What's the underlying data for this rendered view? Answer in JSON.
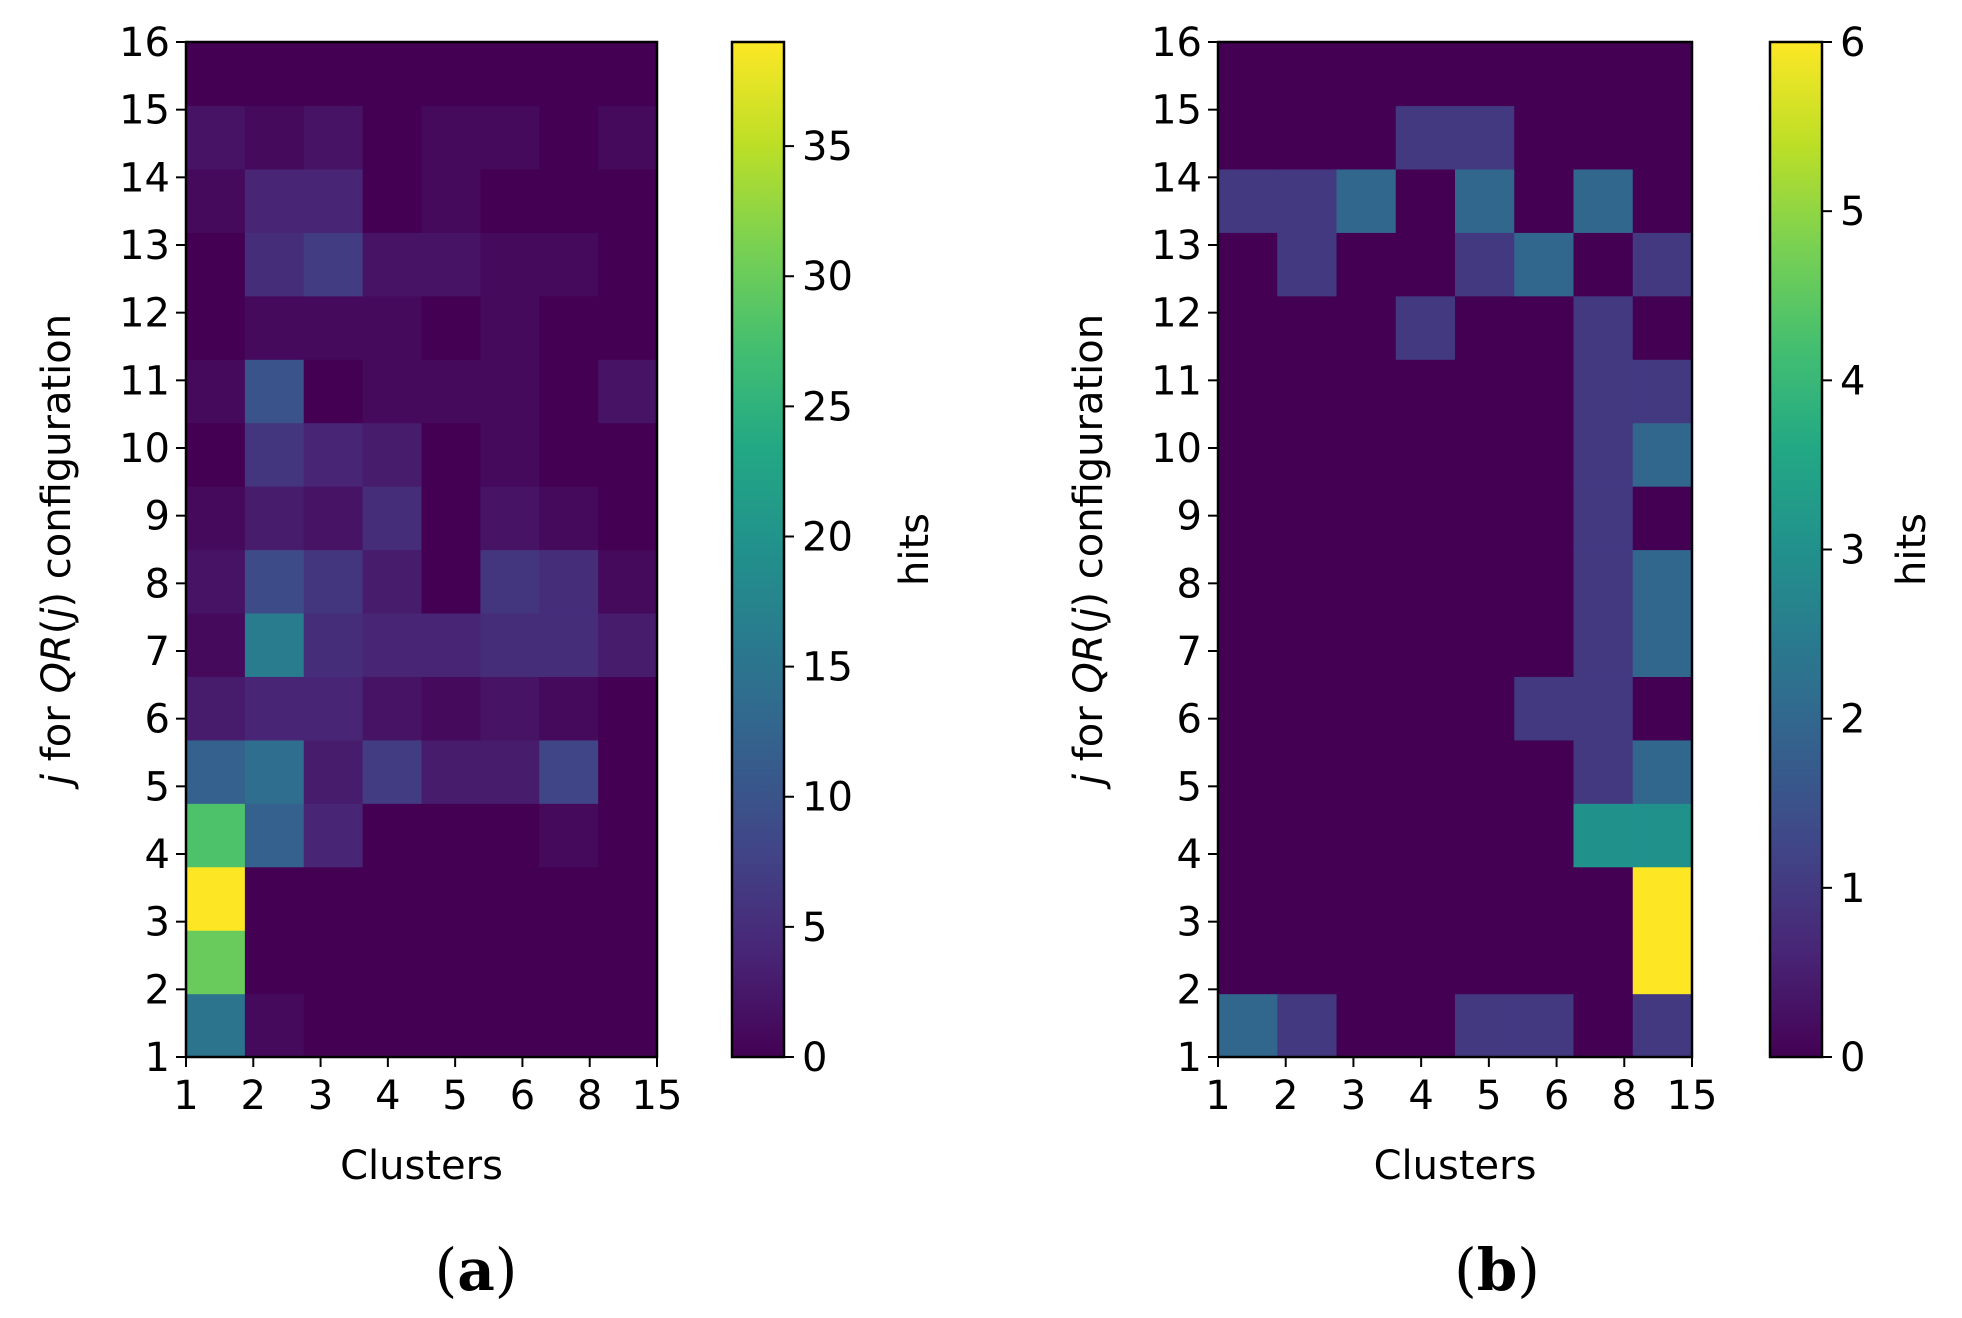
{
  "chart_data": [
    {
      "type": "heatmap",
      "panel_label": "(a)",
      "xlabel": "Clusters",
      "ylabel_parts": [
        "j",
        " for ",
        "QR",
        "(",
        "j",
        ") configuration"
      ],
      "x_categories": [
        "1",
        "2",
        "3",
        "4",
        "5",
        "6",
        "8",
        "15"
      ],
      "y_ticks": [
        "1",
        "2",
        "3",
        "4",
        "5",
        "6",
        "7",
        "8",
        "9",
        "10",
        "11",
        "12",
        "13",
        "14",
        "15",
        "16"
      ],
      "colorbar": {
        "label": "hits",
        "min": 0,
        "max": 39,
        "ticks": [
          "0",
          "5",
          "10",
          "15",
          "20",
          "25",
          "30",
          "35"
        ],
        "tick_values": [
          0,
          5,
          10,
          15,
          20,
          25,
          30,
          35
        ]
      },
      "rows_bottom_to_top": [
        [
          15,
          1,
          0,
          0,
          0,
          0,
          0,
          0
        ],
        [
          30,
          0,
          0,
          0,
          0,
          0,
          0,
          0
        ],
        [
          39,
          0,
          0,
          0,
          0,
          0,
          0,
          0
        ],
        [
          28,
          12,
          4,
          0,
          0,
          0,
          1,
          0
        ],
        [
          12,
          14,
          3,
          7,
          3,
          3,
          8,
          0
        ],
        [
          3,
          4,
          4,
          2,
          1,
          2,
          1,
          0
        ],
        [
          1,
          16,
          5,
          4,
          4,
          5,
          5,
          3
        ],
        [
          2,
          9,
          6,
          3,
          0,
          6,
          5,
          1
        ],
        [
          1,
          3,
          2,
          5,
          0,
          2,
          1,
          0
        ],
        [
          0,
          6,
          4,
          3,
          0,
          1,
          0,
          0
        ],
        [
          1,
          10,
          0,
          1,
          1,
          1,
          0,
          2
        ],
        [
          0,
          1,
          1,
          1,
          0,
          1,
          0,
          0
        ],
        [
          0,
          5,
          7,
          2,
          2,
          1,
          1,
          0
        ],
        [
          1,
          4,
          4,
          0,
          1,
          0,
          0,
          0
        ],
        [
          2,
          1,
          2,
          0,
          1,
          1,
          0,
          1
        ],
        [
          0,
          0,
          0,
          0,
          0,
          0,
          0,
          0
        ]
      ]
    },
    {
      "type": "heatmap",
      "panel_label": "(b)",
      "xlabel": "Clusters",
      "ylabel_parts": [
        "j",
        " for ",
        "QR",
        "(",
        "j",
        ") configuration"
      ],
      "x_categories": [
        "1",
        "2",
        "3",
        "4",
        "5",
        "6",
        "8",
        "15"
      ],
      "y_ticks": [
        "1",
        "2",
        "3",
        "4",
        "5",
        "6",
        "7",
        "8",
        "9",
        "10",
        "11",
        "12",
        "13",
        "14",
        "15",
        "16"
      ],
      "colorbar": {
        "label": "hits",
        "min": 0,
        "max": 6,
        "ticks": [
          "0",
          "1",
          "2",
          "3",
          "4",
          "5",
          "6"
        ],
        "tick_values": [
          0,
          1,
          2,
          3,
          4,
          5,
          6
        ]
      },
      "rows_bottom_to_top": [
        [
          2,
          1,
          0,
          0,
          1,
          1,
          0,
          1
        ],
        [
          0,
          0,
          0,
          0,
          0,
          0,
          0,
          6
        ],
        [
          0,
          0,
          0,
          0,
          0,
          0,
          0,
          6
        ],
        [
          0,
          0,
          0,
          0,
          0,
          0,
          3,
          3
        ],
        [
          0,
          0,
          0,
          0,
          0,
          0,
          1,
          2
        ],
        [
          0,
          0,
          0,
          0,
          0,
          1,
          1,
          0
        ],
        [
          0,
          0,
          0,
          0,
          0,
          0,
          1,
          2
        ],
        [
          0,
          0,
          0,
          0,
          0,
          0,
          1,
          2
        ],
        [
          0,
          0,
          0,
          0,
          0,
          0,
          1,
          0
        ],
        [
          0,
          0,
          0,
          0,
          0,
          0,
          1,
          2
        ],
        [
          0,
          0,
          0,
          0,
          0,
          0,
          1,
          1
        ],
        [
          0,
          0,
          0,
          1,
          0,
          0,
          1,
          0
        ],
        [
          0,
          1,
          0,
          0,
          1,
          2,
          0,
          1
        ],
        [
          1,
          1,
          2,
          0,
          2,
          0,
          2,
          0
        ],
        [
          0,
          0,
          0,
          1,
          1,
          0,
          0,
          0
        ],
        [
          0,
          0,
          0,
          0,
          0,
          0,
          0,
          0
        ]
      ]
    }
  ]
}
